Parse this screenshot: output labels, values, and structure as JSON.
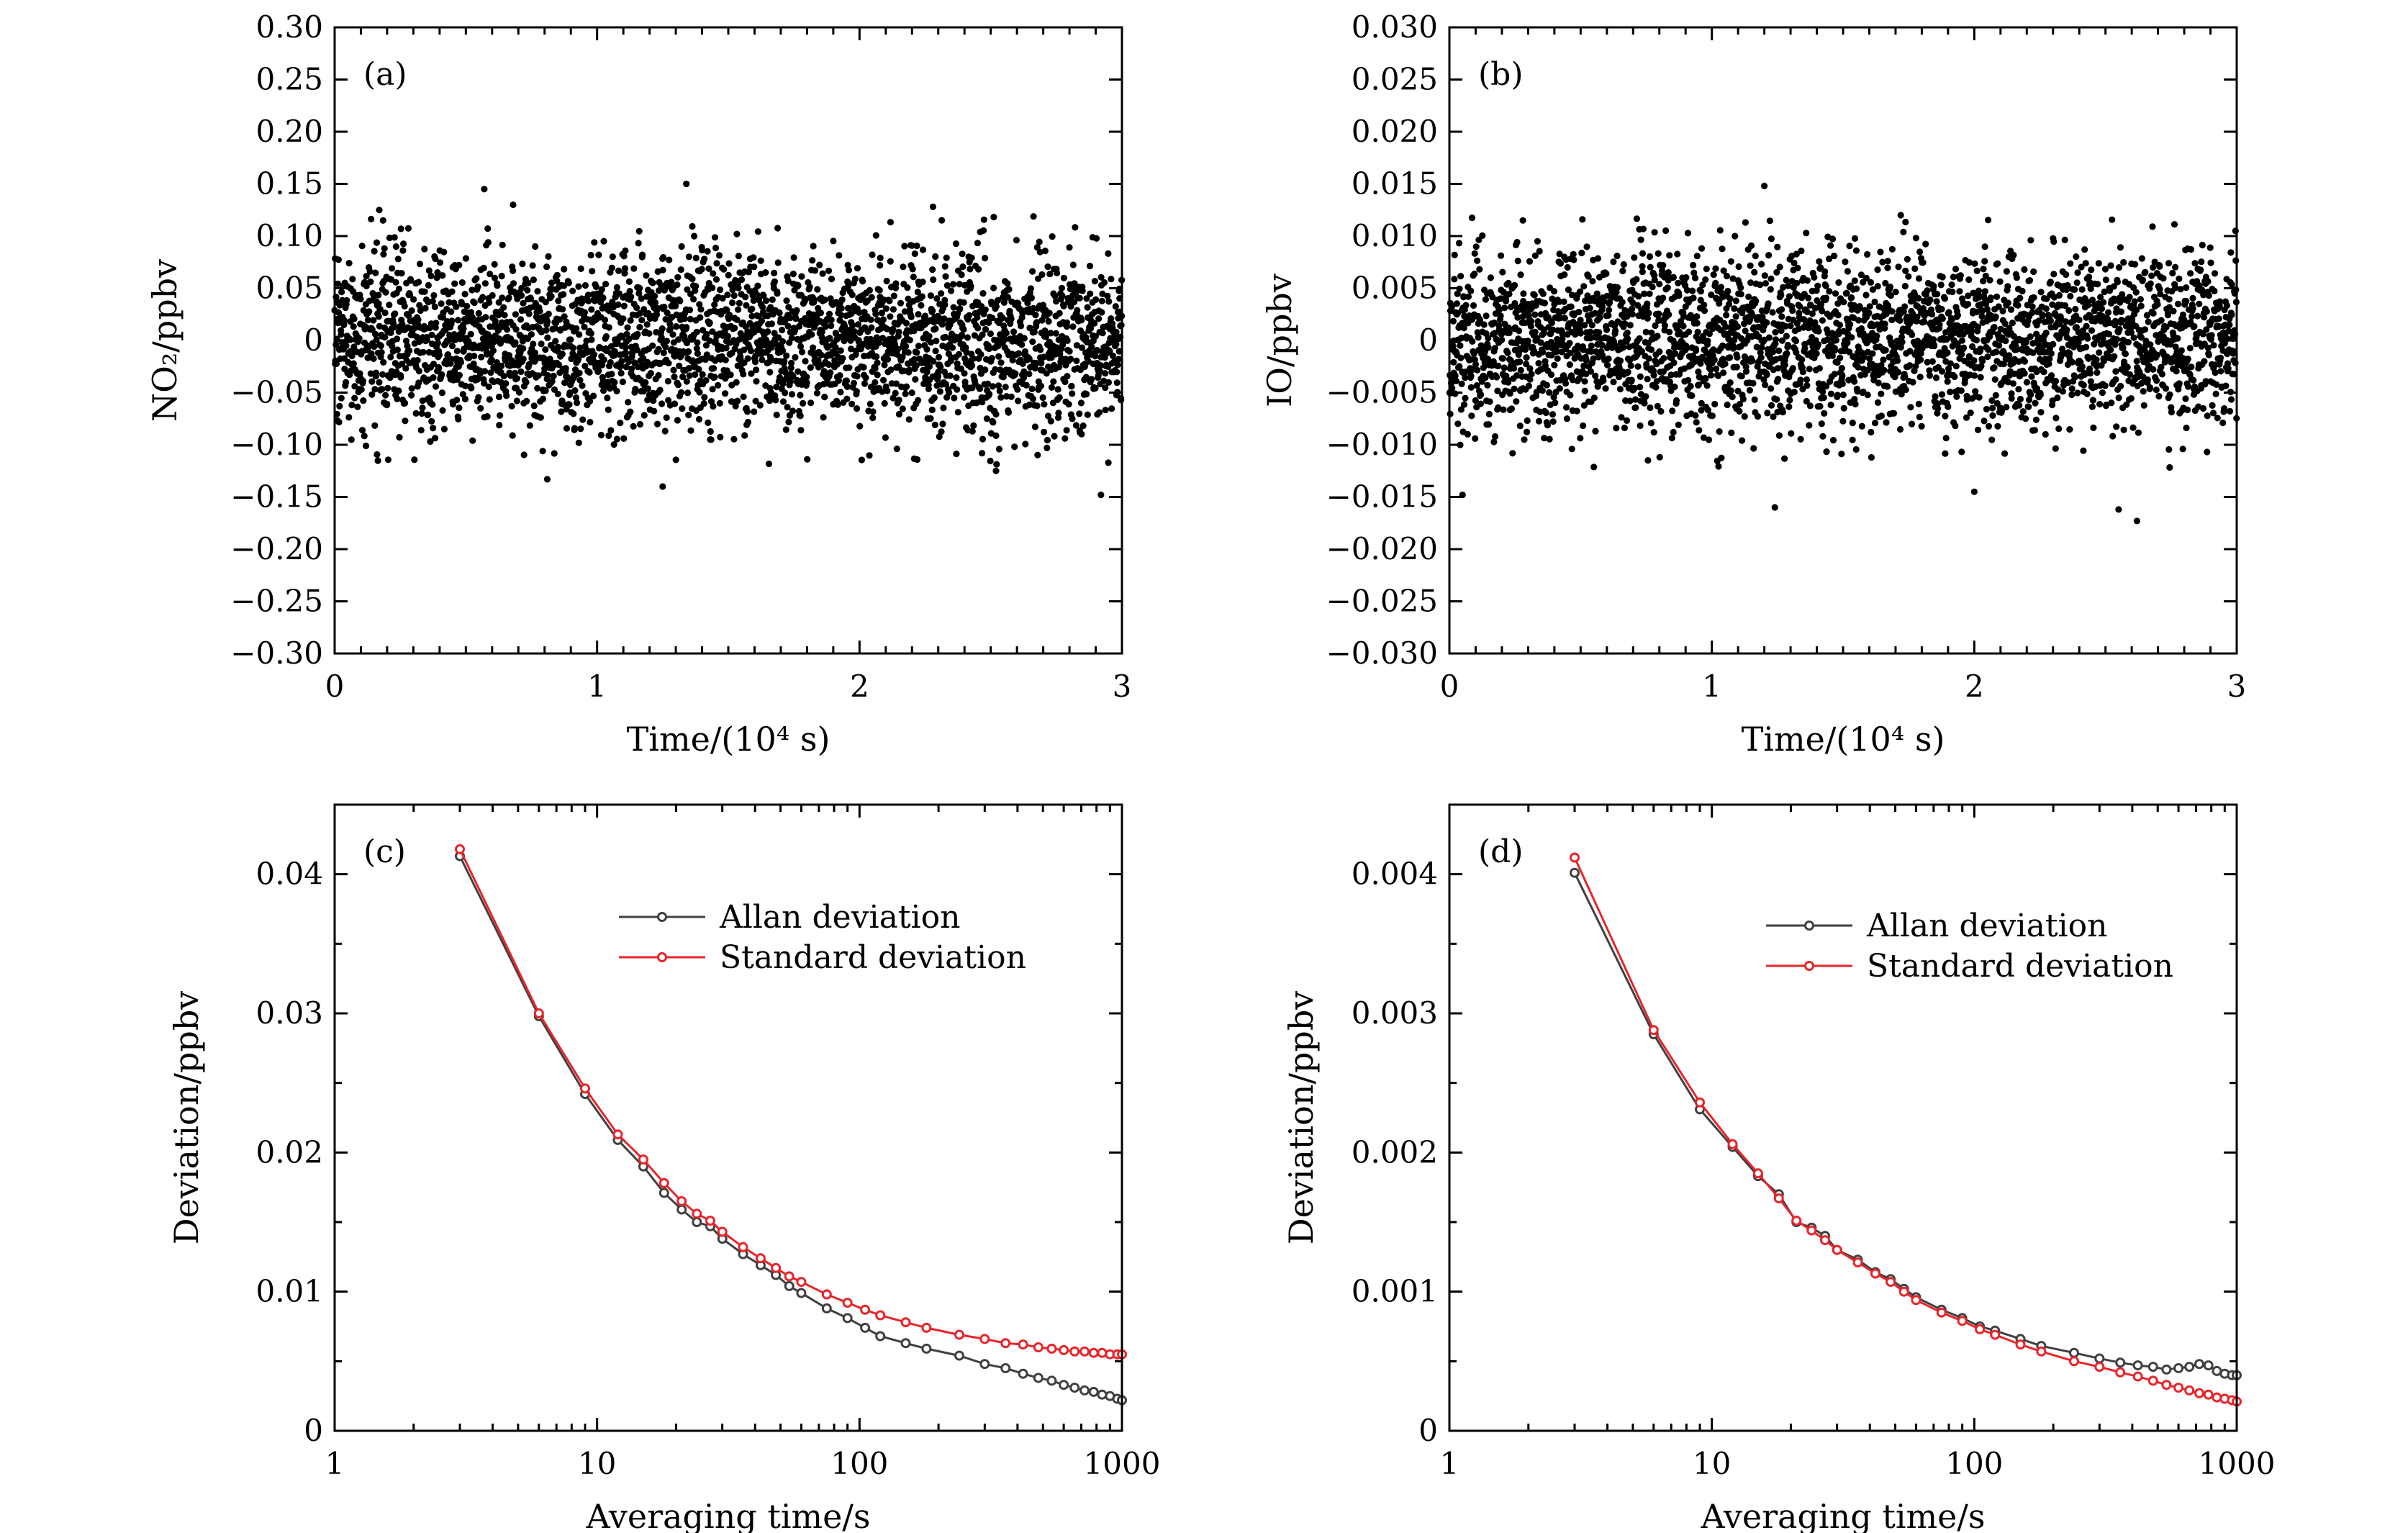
{
  "chart_data": [
    {
      "id": "a",
      "type": "scatter",
      "panel_label": "(a)",
      "xlabel": "Time/(10⁴ s)",
      "ylabel": "NO₂/ppbv",
      "xlim": [
        0,
        3
      ],
      "ylim": [
        -0.3,
        0.3
      ],
      "xticks": [
        0,
        1,
        2,
        3
      ],
      "xtick_labels": [
        "0",
        "1",
        "2",
        "3"
      ],
      "yticks": [
        -0.3,
        -0.25,
        -0.2,
        -0.15,
        -0.1,
        -0.05,
        0,
        0.05,
        0.1,
        0.15,
        0.2,
        0.25,
        0.3
      ],
      "ytick_labels": [
        "−0.30",
        "−0.25",
        "−0.20",
        "−0.15",
        "−0.10",
        "−0.05",
        "0",
        "0.05",
        "0.10",
        "0.15",
        "0.20",
        "0.25",
        "0.30"
      ],
      "series": [
        {
          "color": "#000000",
          "n_points": 3000,
          "x_range": [
            0,
            3
          ],
          "mean": 0.0,
          "std": 0.042,
          "outliers": [
            [
              0.57,
              0.145
            ],
            [
              1.34,
              0.15
            ],
            [
              0.81,
              -0.133
            ],
            [
              1.25,
              -0.14
            ],
            [
              2.92,
              -0.148
            ],
            [
              0.68,
              0.13
            ],
            [
              2.28,
              0.128
            ],
            [
              0.17,
              0.125
            ],
            [
              2.52,
              -0.125
            ]
          ]
        }
      ]
    },
    {
      "id": "b",
      "type": "scatter",
      "panel_label": "(b)",
      "xlabel": "Time/(10⁴ s)",
      "ylabel": "IO/ppbv",
      "xlim": [
        0,
        3
      ],
      "ylim": [
        -0.03,
        0.03
      ],
      "xticks": [
        0,
        1,
        2,
        3
      ],
      "xtick_labels": [
        "0",
        "1",
        "2",
        "3"
      ],
      "yticks": [
        -0.03,
        -0.025,
        -0.02,
        -0.015,
        -0.01,
        -0.005,
        0,
        0.005,
        0.01,
        0.015,
        0.02,
        0.025,
        0.03
      ],
      "ytick_labels": [
        "−0.030",
        "−0.025",
        "−0.020",
        "−0.015",
        "−0.010",
        "−0.005",
        "0",
        "0.005",
        "0.010",
        "0.015",
        "0.020",
        "0.025",
        "0.030"
      ],
      "series": [
        {
          "color": "#000000",
          "n_points": 3000,
          "x_range": [
            0,
            3
          ],
          "mean": 0.0,
          "std": 0.0042,
          "outliers": [
            [
              1.2,
              0.0148
            ],
            [
              0.05,
              -0.0148
            ],
            [
              1.24,
              -0.016
            ],
            [
              2.62,
              -0.0173
            ],
            [
              2.55,
              -0.0162
            ],
            [
              1.72,
              0.012
            ],
            [
              2.0,
              -0.0145
            ],
            [
              0.28,
              0.0115
            ]
          ]
        }
      ]
    },
    {
      "id": "c",
      "type": "line",
      "panel_label": "(c)",
      "xlabel": "Averaging time/s",
      "ylabel": "Deviation/ppbv",
      "xscale": "log",
      "xlim": [
        1,
        1000
      ],
      "ylim": [
        0,
        0.045
      ],
      "xticks": [
        1,
        10,
        100,
        1000
      ],
      "xtick_labels": [
        "1",
        "10",
        "100",
        "1000"
      ],
      "yticks": [
        0,
        0.01,
        0.02,
        0.03,
        0.04
      ],
      "ytick_labels": [
        "0",
        "0.01",
        "0.02",
        "0.03",
        "0.04"
      ],
      "legend_position": "top-right",
      "series": [
        {
          "name": "Allan deviation",
          "color": "#404040",
          "x": [
            3,
            6,
            9,
            12,
            15,
            18,
            21,
            24,
            27,
            30,
            36,
            42,
            48,
            54,
            60,
            75,
            90,
            105,
            120,
            150,
            180,
            240,
            300,
            360,
            420,
            480,
            540,
            600,
            660,
            720,
            780,
            840,
            900,
            960,
            1000
          ],
          "y": [
            0.0413,
            0.0298,
            0.0242,
            0.0209,
            0.019,
            0.0171,
            0.0159,
            0.015,
            0.0147,
            0.0138,
            0.0127,
            0.0119,
            0.0112,
            0.0104,
            0.0099,
            0.0088,
            0.0081,
            0.0074,
            0.0068,
            0.0063,
            0.0059,
            0.0054,
            0.0048,
            0.0045,
            0.0041,
            0.0038,
            0.0036,
            0.0033,
            0.0031,
            0.0029,
            0.0028,
            0.0026,
            0.0025,
            0.0023,
            0.0022
          ]
        },
        {
          "name": "Standard deviation",
          "color": "#e8252a",
          "x": [
            3,
            6,
            9,
            12,
            15,
            18,
            21,
            24,
            27,
            30,
            36,
            42,
            48,
            54,
            60,
            75,
            90,
            105,
            120,
            150,
            180,
            240,
            300,
            360,
            420,
            480,
            540,
            600,
            660,
            720,
            780,
            840,
            900,
            960,
            1000
          ],
          "y": [
            0.0418,
            0.03,
            0.0246,
            0.0213,
            0.0195,
            0.0178,
            0.0165,
            0.0156,
            0.0151,
            0.0143,
            0.0132,
            0.0124,
            0.0117,
            0.0111,
            0.0107,
            0.0098,
            0.0092,
            0.0087,
            0.0083,
            0.0078,
            0.0074,
            0.0069,
            0.0066,
            0.0063,
            0.0062,
            0.006,
            0.0059,
            0.0058,
            0.0057,
            0.0057,
            0.0056,
            0.0056,
            0.0055,
            0.0055,
            0.0055
          ]
        }
      ]
    },
    {
      "id": "d",
      "type": "line",
      "panel_label": "(d)",
      "xlabel": "Averaging time/s",
      "ylabel": "Deviation/ppbv",
      "xscale": "log",
      "xlim": [
        1,
        1000
      ],
      "ylim": [
        0,
        0.0045
      ],
      "xticks": [
        1,
        10,
        100,
        1000
      ],
      "xtick_labels": [
        "1",
        "10",
        "100",
        "1000"
      ],
      "yticks": [
        0,
        0.001,
        0.002,
        0.003,
        0.004
      ],
      "ytick_labels": [
        "0",
        "0.001",
        "0.002",
        "0.003",
        "0.004"
      ],
      "legend_position": "top-right",
      "series": [
        {
          "name": "Allan deviation",
          "color": "#404040",
          "x": [
            3,
            6,
            9,
            12,
            15,
            18,
            21,
            24,
            27,
            30,
            36,
            42,
            48,
            54,
            60,
            75,
            90,
            105,
            120,
            150,
            180,
            240,
            300,
            360,
            420,
            480,
            540,
            600,
            660,
            720,
            780,
            840,
            900,
            960,
            1000
          ],
          "y": [
            0.00401,
            0.00285,
            0.00231,
            0.00204,
            0.00183,
            0.0017,
            0.0015,
            0.00146,
            0.0014,
            0.0013,
            0.00123,
            0.00114,
            0.00109,
            0.00102,
            0.00096,
            0.00087,
            0.00081,
            0.00075,
            0.00072,
            0.00066,
            0.00061,
            0.00056,
            0.00052,
            0.00049,
            0.00047,
            0.00046,
            0.00044,
            0.00045,
            0.00046,
            0.00048,
            0.00047,
            0.00043,
            0.00041,
            0.0004,
            0.0004
          ]
        },
        {
          "name": "Standard deviation",
          "color": "#e8252a",
          "x": [
            3,
            6,
            9,
            12,
            15,
            18,
            21,
            24,
            27,
            30,
            36,
            42,
            48,
            54,
            60,
            75,
            90,
            105,
            120,
            150,
            180,
            240,
            300,
            360,
            420,
            480,
            540,
            600,
            660,
            720,
            780,
            840,
            900,
            960,
            1000
          ],
          "y": [
            0.00412,
            0.00288,
            0.00236,
            0.00206,
            0.00185,
            0.00167,
            0.00151,
            0.00144,
            0.00137,
            0.0013,
            0.00121,
            0.00113,
            0.00107,
            0.001,
            0.00094,
            0.00085,
            0.00079,
            0.00073,
            0.00069,
            0.00062,
            0.00057,
            0.0005,
            0.00046,
            0.00042,
            0.00039,
            0.00036,
            0.00033,
            0.00031,
            0.00029,
            0.00027,
            0.00026,
            0.00024,
            0.00023,
            0.00022,
            0.00021
          ]
        }
      ]
    }
  ]
}
